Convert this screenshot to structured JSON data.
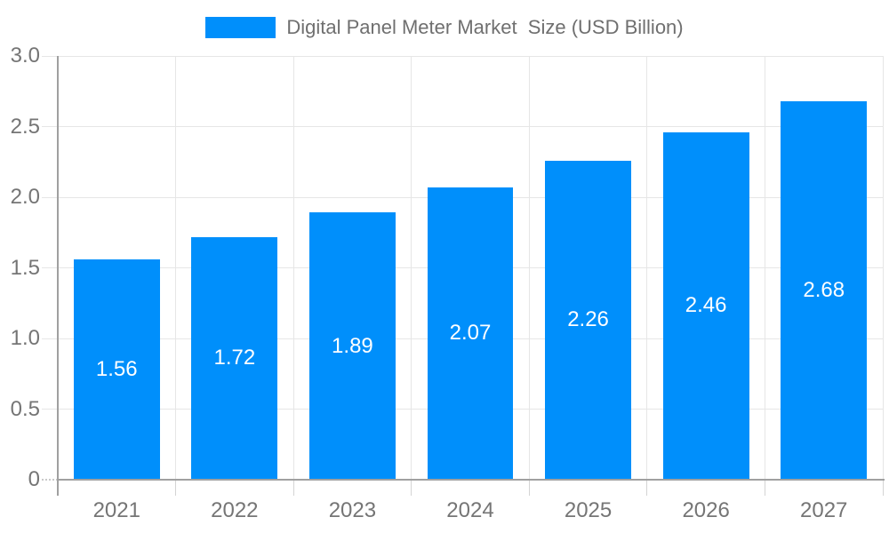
{
  "chart_data": {
    "type": "bar",
    "title": "Digital Panel Meter Market  Size (USD Billion)",
    "legend": {
      "label": "Digital Panel Meter Market  Size (USD Billion)",
      "position": "top",
      "marker": "rect"
    },
    "categories": [
      "2021",
      "2022",
      "2023",
      "2024",
      "2025",
      "2026",
      "2027"
    ],
    "series": [
      {
        "name": "Digital Panel Meter Market  Size (USD Billion)",
        "values": [
          1.56,
          1.72,
          1.89,
          2.07,
          2.26,
          2.46,
          2.68
        ]
      }
    ],
    "value_labels": [
      "1.56",
      "1.72",
      "1.89",
      "2.07",
      "2.26",
      "2.46",
      "2.68"
    ],
    "xlabel": "",
    "ylabel": "",
    "ylim": [
      0,
      3.0
    ],
    "ytick_labels": [
      "0",
      "0.5",
      "1.0",
      "1.5",
      "2.0",
      "2.5",
      "3.0"
    ],
    "grid": true,
    "colors": {
      "bar": "#008FFB",
      "value_label": "#ffffff",
      "axis_label": "#757575",
      "legend_label": "#6f6f6f",
      "gridline": "#e6e6e6",
      "tick": "#d4d4d4",
      "zero_tick": "#c9c9c9",
      "axis_line": "#a0a0a0",
      "background": "#ffffff"
    }
  }
}
